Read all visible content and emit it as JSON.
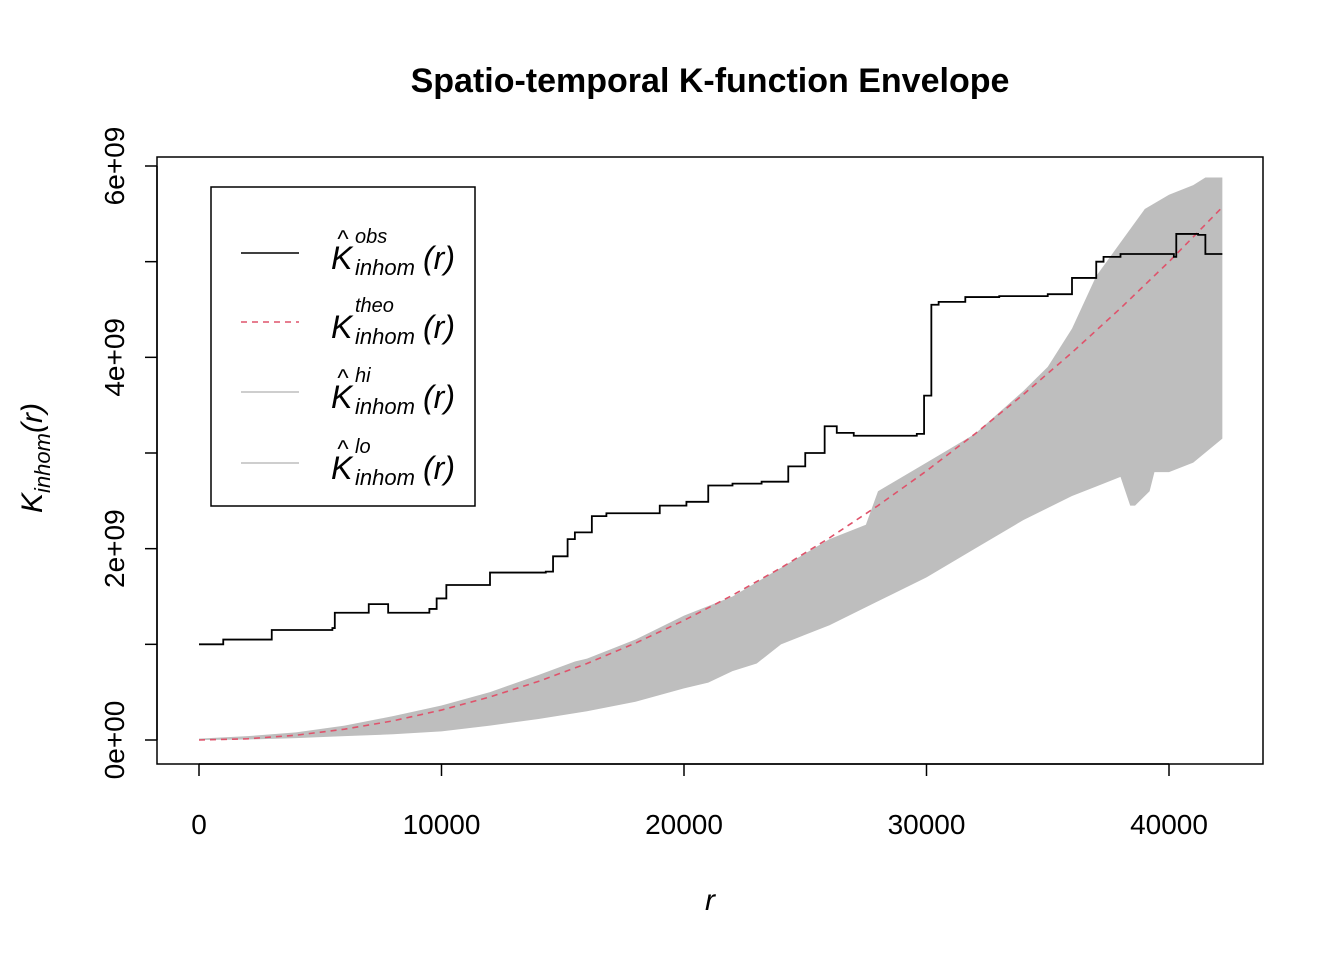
{
  "chart_data": {
    "type": "line",
    "title": "Spatio-temporal K-function Envelope",
    "xlabel": "r",
    "ylabel": {
      "main": "K",
      "sub": "inhom",
      "arg": "(r)"
    },
    "xlim": [
      0,
      42500
    ],
    "ylim": [
      0,
      6000000000
    ],
    "xticks": [
      0,
      10000,
      20000,
      30000,
      40000
    ],
    "xtick_labels": [
      "0",
      "10000",
      "20000",
      "30000",
      "40000"
    ],
    "yticks": [
      0,
      1000000000,
      2000000000,
      3000000000,
      4000000000,
      5000000000,
      6000000000
    ],
    "ytick_labels": [
      "0e+00",
      "",
      "2e+09",
      "",
      "4e+09",
      "",
      "6e+09"
    ],
    "legend": {
      "position": "top-left",
      "entries": [
        {
          "main": "K",
          "hat": true,
          "sup": "obs",
          "sub": "inhom",
          "arg": "(r)",
          "style": "solid",
          "color": "#000000"
        },
        {
          "main": "K",
          "hat": false,
          "sup": "theo",
          "sub": "inhom",
          "arg": "(r)",
          "style": "dashed",
          "color": "#DF536B"
        },
        {
          "main": "K",
          "hat": true,
          "sup": "hi",
          "sub": "inhom",
          "arg": "(r)",
          "style": "solid",
          "color": "#BEBEBE"
        },
        {
          "main": "K",
          "hat": true,
          "sup": "lo",
          "sub": "inhom",
          "arg": "(r)",
          "style": "solid",
          "color": "#BEBEBE"
        }
      ]
    },
    "series": [
      {
        "name": "obs",
        "style": "step",
        "color": "#000000",
        "x": [
          0,
          1000,
          3000,
          5500,
          5600,
          7000,
          7800,
          9500,
          9800,
          10200,
          12000,
          14300,
          14600,
          15200,
          15500,
          16200,
          16800,
          19000,
          20100,
          21000,
          22000,
          23200,
          24300,
          25000,
          25800,
          26300,
          27000,
          29600,
          29900,
          30200,
          30500,
          31600,
          33000,
          35000,
          36000,
          37000,
          37300,
          38000,
          40200,
          40300,
          41200,
          41500,
          42200
        ],
        "y": [
          1000000000,
          1050000000,
          1150000000,
          1170000000,
          1330000000,
          1420000000,
          1330000000,
          1370000000,
          1480000000,
          1620000000,
          1750000000,
          1760000000,
          1920000000,
          2100000000,
          2170000000,
          2340000000,
          2370000000,
          2450000000,
          2490000000,
          2660000000,
          2680000000,
          2700000000,
          2860000000,
          3000000000,
          3280000000,
          3210000000,
          3180000000,
          3200000000,
          3600000000,
          4550000000,
          4580000000,
          4630000000,
          4640000000,
          4660000000,
          4830000000,
          5000000000,
          5050000000,
          5080000000,
          5050000000,
          5290000000,
          5280000000,
          5080000000,
          5080000000
        ]
      },
      {
        "name": "theo",
        "style": "dashed",
        "color": "#DF536B",
        "x": [
          0,
          2000,
          4000,
          6000,
          8000,
          10000,
          12000,
          14000,
          16000,
          18000,
          20000,
          22000,
          24000,
          26000,
          28000,
          30000,
          32000,
          34000,
          36000,
          38000,
          40000,
          42200
        ],
        "y": [
          0,
          12500000,
          50000000,
          113000000,
          200000000,
          313000000,
          450000000,
          613000000,
          800000000,
          1013000000,
          1250000000,
          1513000000,
          1800000000,
          2113000000,
          2450000000,
          2813000000,
          3200000000,
          3613000000,
          4050000000,
          4513000000,
          5000000000,
          5570000000
        ]
      },
      {
        "name": "hi",
        "style": "envelope-upper",
        "color": "#BEBEBE",
        "x": [
          0,
          2000,
          4000,
          6000,
          8000,
          10000,
          12000,
          14000,
          15500,
          16000,
          18000,
          20000,
          22000,
          24000,
          26000,
          27500,
          28000,
          30000,
          32000,
          34000,
          35000,
          36000,
          37000,
          38000,
          39000,
          40000,
          41000,
          41500,
          42200
        ],
        "y": [
          15000000,
          40000000,
          80000000,
          150000000,
          250000000,
          360000000,
          500000000,
          680000000,
          820000000,
          850000000,
          1050000000,
          1300000000,
          1500000000,
          1800000000,
          2100000000,
          2250000000,
          2600000000,
          2900000000,
          3200000000,
          3650000000,
          3900000000,
          4300000000,
          4850000000,
          5200000000,
          5550000000,
          5700000000,
          5800000000,
          5880000000,
          5880000000
        ]
      },
      {
        "name": "lo",
        "style": "envelope-lower",
        "color": "#BEBEBE",
        "x": [
          0,
          2000,
          4000,
          6000,
          8000,
          10000,
          12000,
          14000,
          16000,
          18000,
          20000,
          21000,
          22000,
          23000,
          24000,
          25000,
          26000,
          28000,
          30000,
          32000,
          34000,
          36000,
          37000,
          38000,
          38400,
          38600,
          39200,
          39400,
          40000,
          41000,
          42200
        ],
        "y": [
          0,
          5000000,
          20000000,
          40000000,
          60000000,
          90000000,
          150000000,
          220000000,
          300000000,
          400000000,
          540000000,
          600000000,
          720000000,
          800000000,
          1000000000,
          1100000000,
          1200000000,
          1450000000,
          1700000000,
          2000000000,
          2300000000,
          2550000000,
          2650000000,
          2750000000,
          2450000000,
          2450000000,
          2600000000,
          2800000000,
          2800000000,
          2900000000,
          3150000000
        ]
      }
    ]
  }
}
